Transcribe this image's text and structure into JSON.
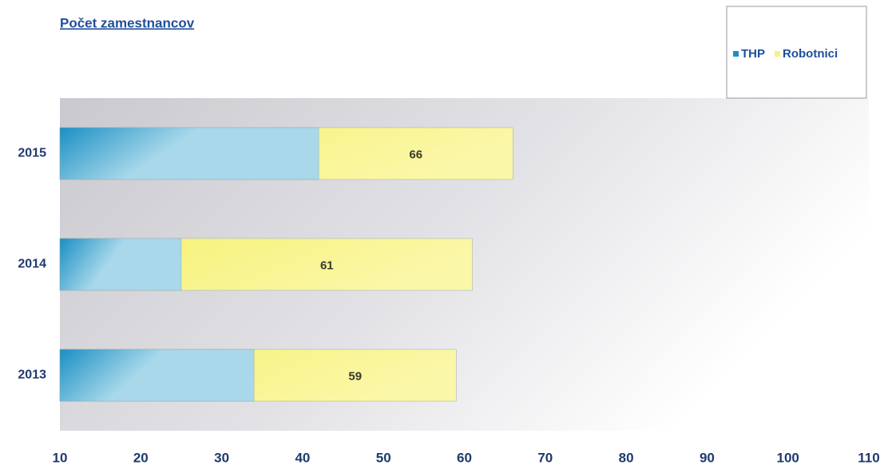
{
  "chart_data": {
    "type": "bar",
    "orientation": "horizontal",
    "title": "Počet zamestnancov",
    "categories": [
      "2013",
      "2014",
      "2015"
    ],
    "series": [
      {
        "name": "THP",
        "color": "#1a8fc4",
        "values": [
          34,
          25,
          42
        ]
      },
      {
        "name": "Robotnici",
        "color": "#f7f27a",
        "values": [
          59,
          61,
          66
        ]
      }
    ],
    "overlap": true,
    "data_labels_series": "Robotnici",
    "xlim": [
      10,
      110
    ],
    "xticks": [
      10,
      20,
      30,
      40,
      50,
      60,
      70,
      80,
      90,
      100,
      110
    ],
    "grid": false,
    "legend": "top-right"
  }
}
